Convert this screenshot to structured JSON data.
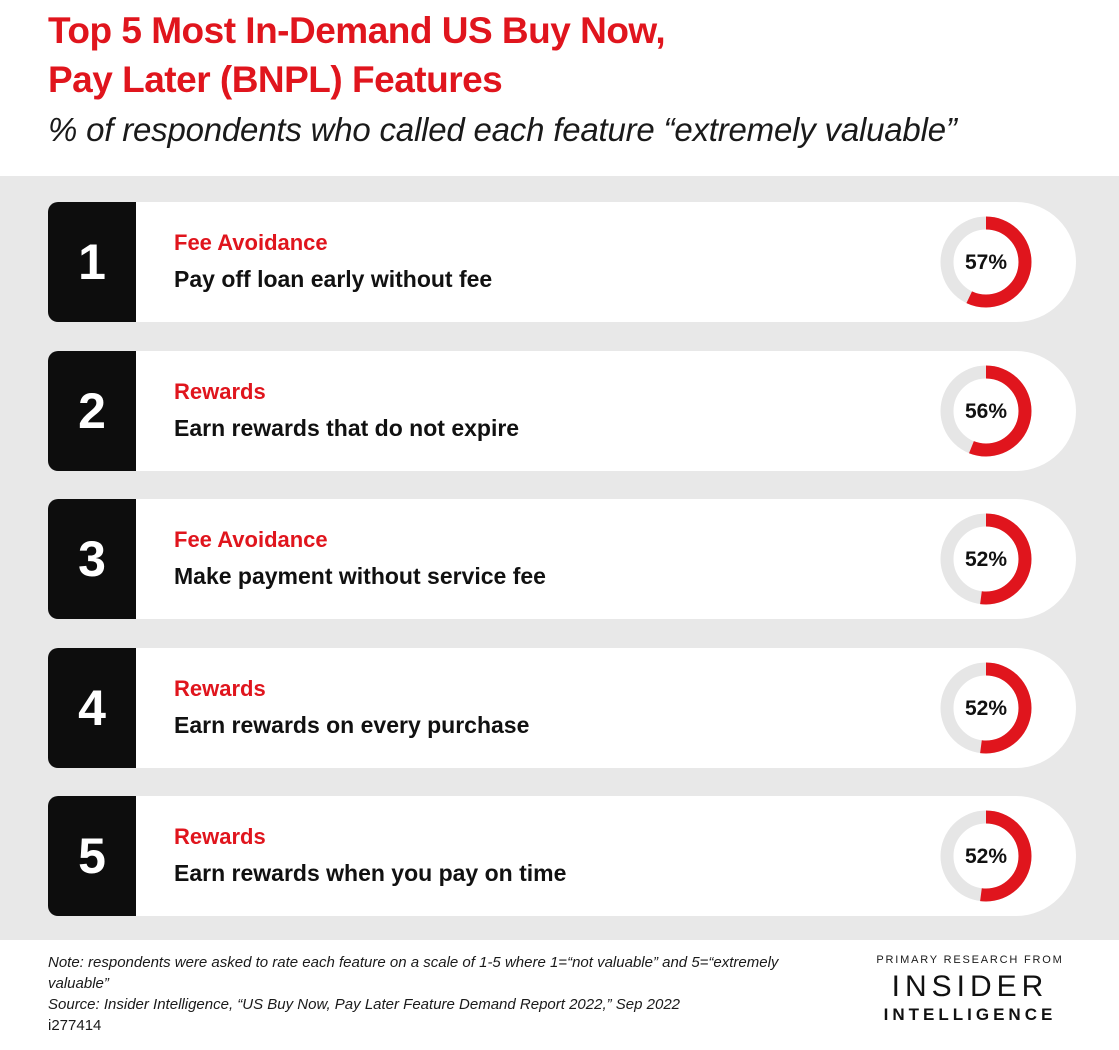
{
  "header": {
    "title_line1": "Top 5 Most In-Demand US Buy Now,",
    "title_line2": "Pay Later (BNPL) Features",
    "subtitle": "% of respondents who called each feature “extremely valuable”"
  },
  "colors": {
    "accent": "#e0151d",
    "rank_bg": "#0d0d0d",
    "panel_bg": "#e8e8e8",
    "donut_track": "#e6e6e6"
  },
  "chart_data": {
    "type": "donut",
    "title": "Top 5 Most In-Demand US Buy Now, Pay Later (BNPL) Features",
    "subtitle": "% of respondents who called each feature “extremely valuable”",
    "unit": "%",
    "items": [
      {
        "rank": "1",
        "category": "Fee Avoidance",
        "feature": "Pay off loan early without fee",
        "value": 57,
        "label": "57%"
      },
      {
        "rank": "2",
        "category": "Rewards",
        "feature": "Earn rewards that do not expire",
        "value": 56,
        "label": "56%"
      },
      {
        "rank": "3",
        "category": "Fee Avoidance",
        "feature": "Make payment without service fee",
        "value": 52,
        "label": "52%"
      },
      {
        "rank": "4",
        "category": "Rewards",
        "feature": "Earn rewards on every purchase",
        "value": 52,
        "label": "52%"
      },
      {
        "rank": "5",
        "category": "Rewards",
        "feature": "Earn rewards when you pay on time",
        "value": 52,
        "label": "52%"
      }
    ]
  },
  "footer": {
    "note": "Note: respondents were asked to rate each feature on a scale of 1-5 where 1=“not valuable” and 5=“extremely valuable”",
    "source": "Source: Insider Intelligence, “US Buy Now, Pay Later Feature Demand Report 2022,” Sep 2022",
    "chart_id": "i277414"
  },
  "brand": {
    "kicker": "PRIMARY RESEARCH FROM",
    "name_line1": "INSIDER",
    "name_line2": "INTELLIGENCE"
  }
}
